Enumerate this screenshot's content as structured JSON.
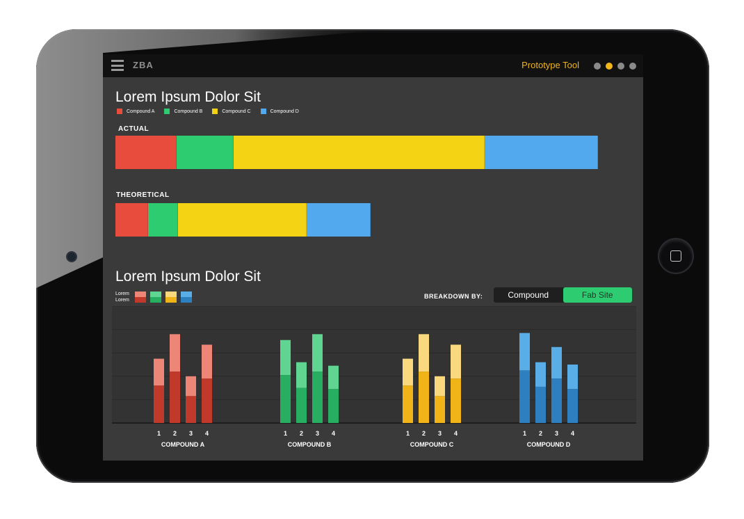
{
  "app": {
    "name": "ZBA",
    "tool_name": "Prototype Tool",
    "page_dots": 4,
    "active_dot": 1
  },
  "colors": {
    "compound_a": "#e74c3c",
    "compound_b": "#2ecc71",
    "compound_c": "#f4d314",
    "compound_d": "#52a9ed",
    "accent": "#f2b51b",
    "screen_bg": "#3a3a3a",
    "topbar_bg": "#111111"
  },
  "section1": {
    "title": "Lorem Ipsum Dolor Sit",
    "legend": [
      {
        "label": "Compound A",
        "color": "#e74c3c"
      },
      {
        "label": "Compound B",
        "color": "#2ecc71"
      },
      {
        "label": "Compound C",
        "color": "#f4d314"
      },
      {
        "label": "Compound D",
        "color": "#52a9ed"
      }
    ],
    "actual": {
      "label": "ACTUAL",
      "values": [
        88,
        82,
        361,
        163
      ]
    },
    "theoretical": {
      "label": "THEORETICAL",
      "values": [
        47,
        43,
        185,
        92
      ]
    }
  },
  "section2": {
    "title": "Lorem Ipsum Dolor Sit",
    "legend_text_1": "Lorem",
    "legend_text_2": "Lorem",
    "breakdown_label": "BREAKDOWN BY:",
    "toggle": {
      "options": [
        "Compound",
        "Fab Site"
      ],
      "selected": "Fab Site"
    }
  },
  "chart_data": {
    "type": "bar",
    "stacked": true,
    "ylim": [
      0,
      5
    ],
    "grid": true,
    "groups": [
      {
        "name": "COMPOUND A",
        "light": "#ee8678",
        "dark": "#c0392b",
        "categories": [
          "1",
          "2",
          "3",
          "4"
        ],
        "base": [
          1.6,
          2.2,
          1.15,
          1.9
        ],
        "top": [
          1.15,
          1.6,
          0.85,
          1.45
        ]
      },
      {
        "name": "COMPOUND B",
        "light": "#5fd591",
        "dark": "#27ae60",
        "categories": [
          "1",
          "2",
          "3",
          "4"
        ],
        "base": [
          2.05,
          1.5,
          2.2,
          1.45
        ],
        "top": [
          1.5,
          1.1,
          1.6,
          1.0
        ]
      },
      {
        "name": "COMPOUND C",
        "light": "#fad97e",
        "dark": "#f0b418",
        "categories": [
          "1",
          "2",
          "3",
          "4"
        ],
        "base": [
          1.6,
          2.2,
          1.15,
          1.9
        ],
        "top": [
          1.15,
          1.6,
          0.85,
          1.45
        ]
      },
      {
        "name": "COMPOUND D",
        "light": "#5aaee8",
        "dark": "#2d7fc0",
        "categories": [
          "1",
          "2",
          "3",
          "4"
        ],
        "base": [
          2.25,
          1.55,
          1.9,
          1.45
        ],
        "top": [
          1.6,
          1.05,
          1.35,
          1.05
        ]
      }
    ]
  }
}
